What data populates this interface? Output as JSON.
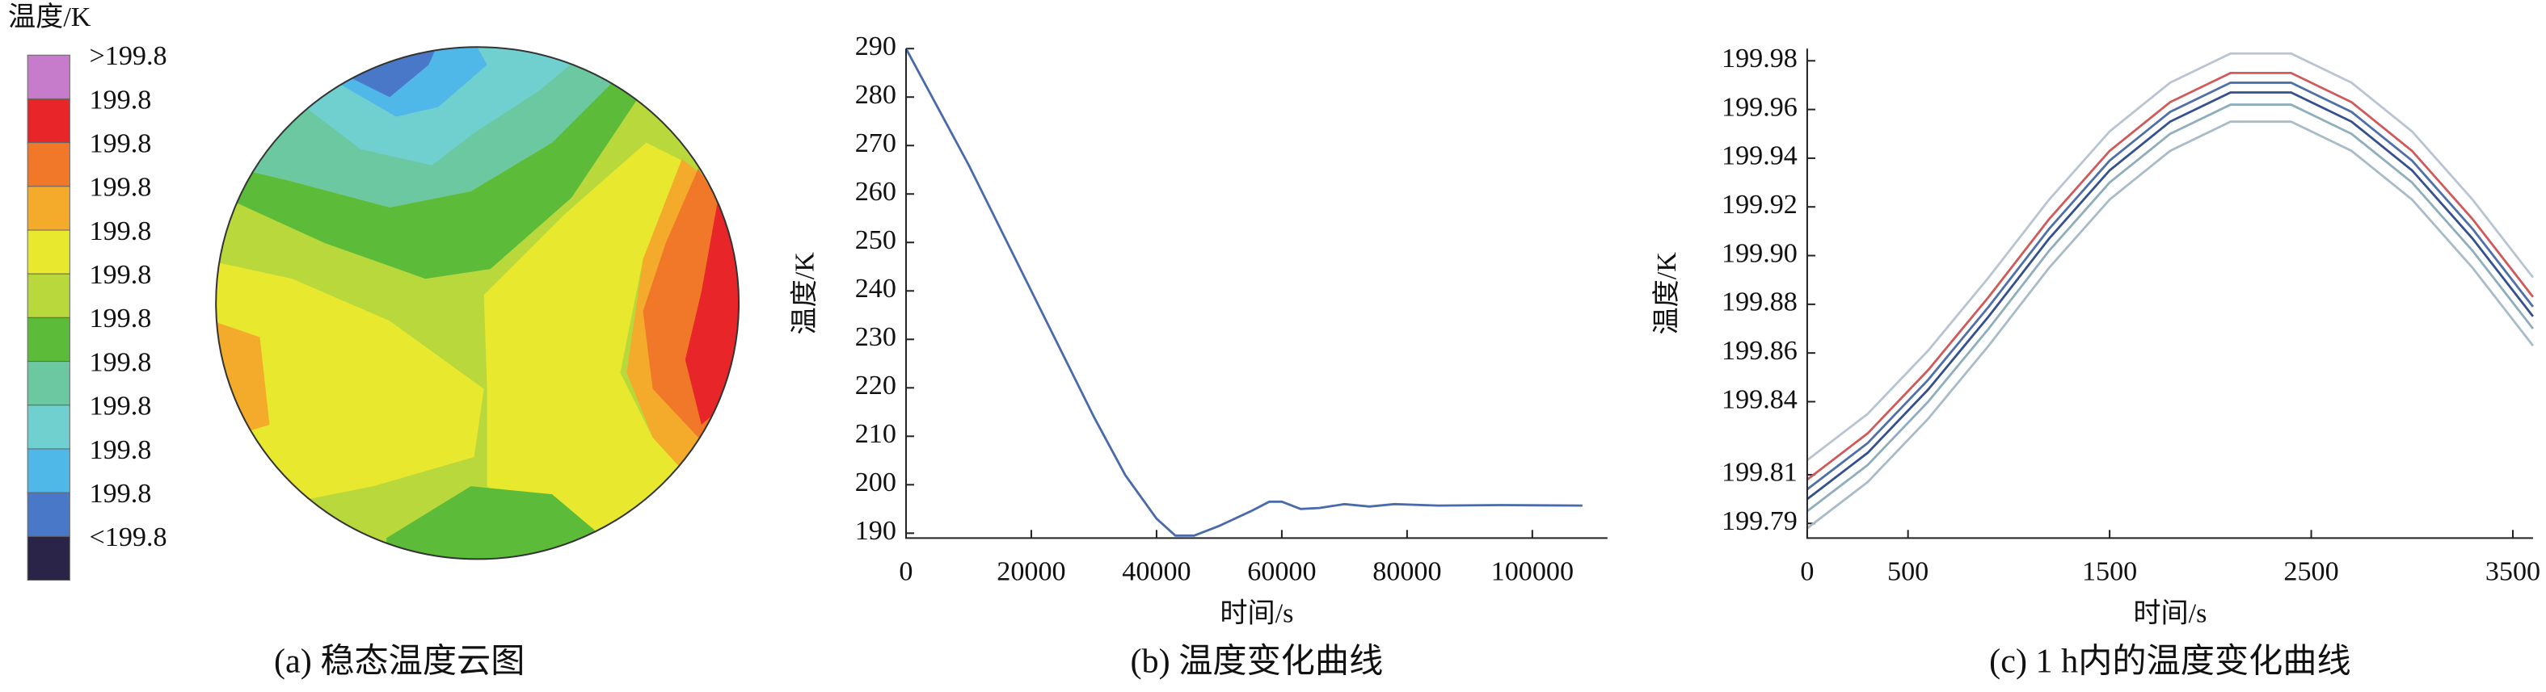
{
  "chart_data": [
    {
      "type": "contour",
      "title": "温度/K",
      "caption": "(a)  稳态温度云图",
      "legend": [
        {
          "label": ">199.8",
          "color": "#c77ccb"
        },
        {
          "label": "199.8",
          "color": "#e8262a"
        },
        {
          "label": "199.8",
          "color": "#f07828"
        },
        {
          "label": "199.8",
          "color": "#f4aa2a"
        },
        {
          "label": "199.8",
          "color": "#e8e82e"
        },
        {
          "label": "199.8",
          "color": "#b8d83c"
        },
        {
          "label": "199.8",
          "color": "#5cbc3a"
        },
        {
          "label": "199.8",
          "color": "#6cc8a0"
        },
        {
          "label": "199.8",
          "color": "#70d0d0"
        },
        {
          "label": "199.8",
          "color": "#50b8e8"
        },
        {
          "label": "199.8",
          "color": "#4a78c8"
        },
        {
          "label": "<199.8",
          "color": "#2a2448"
        }
      ]
    },
    {
      "type": "line",
      "caption": "(b)  温度变化曲线",
      "x_label": "时间/s",
      "y_label": "温度/K",
      "x": [
        0,
        5000,
        10000,
        15000,
        20000,
        25000,
        30000,
        35000,
        40000,
        43000,
        46000,
        50000,
        55000,
        58000,
        60000,
        63000,
        66000,
        70000,
        74000,
        78000,
        85000,
        95000,
        108000
      ],
      "series": [
        {
          "color": "#4a6aaa",
          "values": [
            290,
            278,
            266,
            253,
            240,
            227,
            214,
            202,
            193,
            189.5,
            189.5,
            191.5,
            194.5,
            196.5,
            196.5,
            195,
            195.2,
            196,
            195.5,
            196,
            195.7,
            195.8,
            195.7
          ]
        }
      ],
      "xlim": [
        0,
        112000
      ],
      "ylim": [
        189,
        290
      ],
      "xticks": [
        0,
        20000,
        40000,
        60000,
        80000,
        100000
      ],
      "yticks": [
        190,
        200,
        210,
        220,
        230,
        240,
        250,
        260,
        270,
        280,
        290
      ]
    },
    {
      "type": "line",
      "caption": "(c)  1 h内的温度变化曲线",
      "x_label": "时间/s",
      "y_label": "温度/K",
      "x": [
        0,
        300,
        600,
        900,
        1200,
        1500,
        1800,
        2100,
        2400,
        2700,
        3000,
        3300,
        3600
      ],
      "series": [
        {
          "color": "#b8c4d2",
          "values": [
            199.816,
            199.835,
            199.861,
            199.891,
            199.923,
            199.951,
            199.971,
            199.983,
            199.983,
            199.971,
            199.951,
            199.923,
            199.891
          ]
        },
        {
          "color": "#a8bcc8",
          "values": [
            199.788,
            199.807,
            199.833,
            199.863,
            199.895,
            199.923,
            199.943,
            199.955,
            199.955,
            199.943,
            199.923,
            199.895,
            199.863
          ]
        },
        {
          "color": "#8faebc",
          "values": [
            199.795,
            199.814,
            199.84,
            199.87,
            199.902,
            199.93,
            199.95,
            199.962,
            199.962,
            199.95,
            199.93,
            199.902,
            199.87
          ]
        },
        {
          "color": "#d05a5a",
          "values": [
            199.808,
            199.827,
            199.853,
            199.883,
            199.915,
            199.943,
            199.963,
            199.975,
            199.975,
            199.963,
            199.943,
            199.915,
            199.883
          ]
        },
        {
          "color": "#5070a8",
          "values": [
            199.804,
            199.823,
            199.849,
            199.879,
            199.911,
            199.939,
            199.959,
            199.971,
            199.971,
            199.959,
            199.939,
            199.911,
            199.879
          ]
        },
        {
          "color": "#34508e",
          "values": [
            199.8,
            199.819,
            199.845,
            199.875,
            199.907,
            199.935,
            199.955,
            199.967,
            199.967,
            199.955,
            199.935,
            199.907,
            199.875
          ]
        }
      ],
      "xlim": [
        0,
        3600
      ],
      "ylim": [
        199.784,
        199.985
      ],
      "xticks": [
        0,
        500,
        1500,
        2500,
        3500
      ],
      "yticks": [
        199.79,
        199.81,
        199.84,
        199.86,
        199.88,
        {
          "value": 199.9,
          "label": "199.90"
        },
        199.92,
        199.94,
        199.96,
        199.98
      ]
    }
  ]
}
